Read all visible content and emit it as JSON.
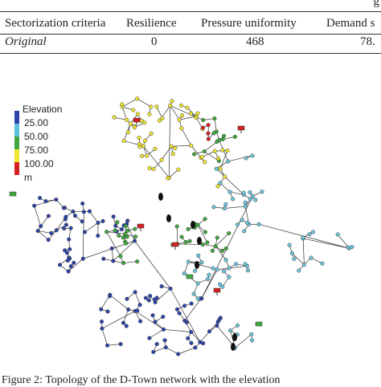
{
  "table": {
    "corner": "g",
    "headers": [
      "Sectorization criteria",
      "Resilience",
      "Pressure uniformity",
      "Demand s"
    ],
    "rows": [
      [
        "Original",
        "0",
        "468",
        "78."
      ]
    ]
  },
  "legend": {
    "title": "Elevation",
    "labels": [
      "25.00",
      "50.00",
      "75.00",
      "100.00",
      "m"
    ]
  },
  "caption": "Figure 2: Topology of the D-Town network with the elevation"
}
